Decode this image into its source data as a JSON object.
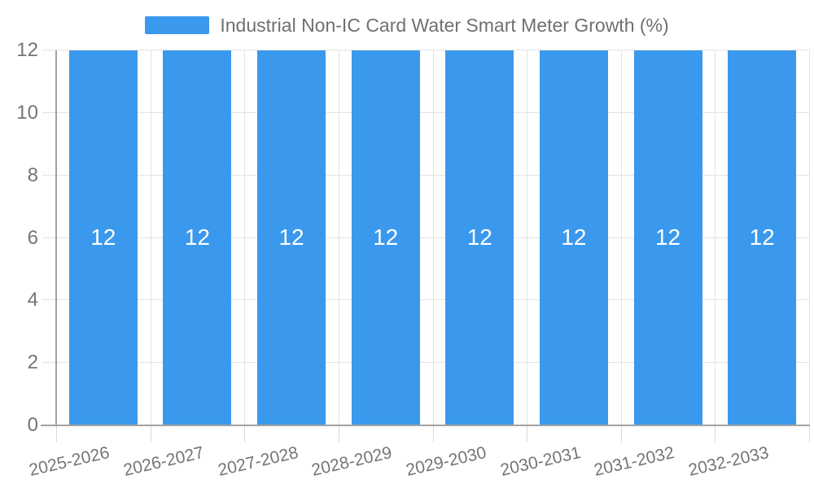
{
  "legend": {
    "label": "Industrial Non-IC Card Water Smart Meter Growth (%)"
  },
  "chart_data": {
    "type": "bar",
    "title": "Industrial Non-IC Card Water Smart Meter Growth (%)",
    "categories": [
      "2025-2026",
      "2026-2027",
      "2027-2028",
      "2028-2029",
      "2029-2030",
      "2030-2031",
      "2031-2032",
      "2032-2033"
    ],
    "values": [
      12,
      12,
      12,
      12,
      12,
      12,
      12,
      12
    ],
    "bar_value_labels": [
      "12",
      "12",
      "12",
      "12",
      "12",
      "12",
      "12",
      "12"
    ],
    "xlabel": "",
    "ylabel": "",
    "ylim": [
      0,
      12
    ],
    "yticks": [
      0,
      2,
      4,
      6,
      8,
      10,
      12
    ],
    "grid": true,
    "legend_position": "top",
    "colors": {
      "bar": "#3a99ed",
      "bar_label": "#ffffff",
      "grid_line": "#e3e3e3",
      "tick_line": "#d9d9d9",
      "axis_line": "#a2a2a2",
      "axis_text": "#757575",
      "legend_text": "#707070",
      "background": "#ffffff"
    }
  }
}
